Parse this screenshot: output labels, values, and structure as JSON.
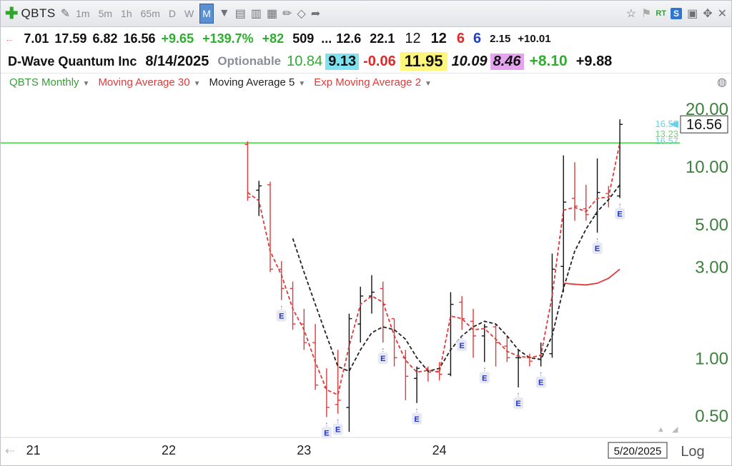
{
  "toolbar": {
    "symbol": "QBTS",
    "timeframes": [
      "1m",
      "5m",
      "1h",
      "65m",
      "D",
      "W",
      "M"
    ],
    "active_timeframe": "M",
    "rt_label": "RT",
    "s_label": "S"
  },
  "quote_row1": [
    "7.01",
    "17.59",
    "6.82",
    "16.56",
    "+9.65",
    "+139.7%",
    "+82",
    "509",
    "...",
    "12.6",
    "22.1",
    "12",
    "12",
    "6",
    "6",
    "2.15",
    "+10.01"
  ],
  "quote_row1_prefix": "...",
  "quote_row2": {
    "name": "D-Wave Quantum Inc",
    "date": "8/14/2025",
    "optionable": "Optionable",
    "v1": "10.84",
    "v2": "9.13",
    "v3": "-0.06",
    "v4": "11.95",
    "v5": "10.09",
    "v6": "8.46",
    "v7": "+8.10",
    "v8": "+9.88"
  },
  "indicators": {
    "symbol_period": "QBTS Monthly",
    "ma30": "Moving Average 30",
    "ma5": "Moving Average 5",
    "ema2": "Exp Moving Average 2"
  },
  "colors": {
    "green_line": "#5cd65c",
    "ma30": "#e03a3a",
    "ema2": "#e03a3a",
    "ma5": "#222222",
    "bar_up": "#111111",
    "bar_down": "#e03a3a",
    "earnings": "#2233cc"
  },
  "chart_data": {
    "type": "line",
    "scale": "log",
    "y_ticks": [
      "20.00",
      "10.00",
      "5.00",
      "3.00",
      "1.00",
      "0.50"
    ],
    "y_tick_values": [
      20,
      10,
      5,
      3,
      1,
      0.5
    ],
    "x_ticks": [
      "21",
      "22",
      "23",
      "24"
    ],
    "x_tick_values": [
      2021,
      2022,
      2023,
      2024
    ],
    "xlim": [
      2020.78,
      2025.75
    ],
    "ylim": [
      0.39,
      24
    ],
    "last_price_label": "16.56",
    "cursor_date_label": "5/20/2025",
    "scale_label": "Log",
    "right_tags": [
      {
        "text": "16.59",
        "y": 16.59,
        "color": "#6ad0e8"
      },
      {
        "text": "13.23",
        "y": 14.7,
        "color": "#6fd36f"
      },
      {
        "text": "16.57",
        "y": 13.5,
        "color": "#6ad0e8"
      }
    ],
    "horizontal_line": 13.23,
    "bars": [
      {
        "t": 2022.5833,
        "o": 13.0,
        "h": 13.5,
        "l": 6.6,
        "c": 6.9,
        "up": false
      },
      {
        "t": 2022.6667,
        "o": 7.5,
        "h": 8.4,
        "l": 5.5,
        "c": 7.9,
        "up": true
      },
      {
        "t": 2022.75,
        "o": 8.0,
        "h": 8.3,
        "l": 2.8,
        "c": 2.9,
        "up": false
      },
      {
        "t": 2022.8333,
        "o": 2.9,
        "h": 3.2,
        "l": 2.0,
        "c": 2.3,
        "up": false
      },
      {
        "t": 2022.9167,
        "o": 2.3,
        "h": 2.5,
        "l": 1.4,
        "c": 1.5,
        "up": false
      },
      {
        "t": 2023.0,
        "o": 1.5,
        "h": 1.8,
        "l": 1.1,
        "c": 1.2,
        "up": false
      },
      {
        "t": 2023.0833,
        "o": 1.2,
        "h": 1.5,
        "l": 0.68,
        "c": 0.72,
        "up": false
      },
      {
        "t": 2023.1667,
        "o": 0.7,
        "h": 0.88,
        "l": 0.49,
        "c": 0.55,
        "up": false
      },
      {
        "t": 2023.25,
        "o": 0.57,
        "h": 1.1,
        "l": 0.51,
        "c": 0.6,
        "up": false
      },
      {
        "t": 2023.3333,
        "o": 0.55,
        "h": 1.7,
        "l": 0.41,
        "c": 1.6,
        "up": true
      },
      {
        "t": 2023.4167,
        "o": 1.5,
        "h": 2.35,
        "l": 1.2,
        "c": 2.1,
        "up": true
      },
      {
        "t": 2023.5,
        "o": 2.1,
        "h": 2.7,
        "l": 1.7,
        "c": 2.2,
        "up": true
      },
      {
        "t": 2023.5833,
        "o": 2.3,
        "h": 2.5,
        "l": 1.2,
        "c": 1.9,
        "up": false
      },
      {
        "t": 2023.6667,
        "o": 1.6,
        "h": 1.6,
        "l": 0.9,
        "c": 1.0,
        "up": false
      },
      {
        "t": 2023.75,
        "o": 1.0,
        "h": 1.1,
        "l": 0.6,
        "c": 0.8,
        "up": false
      },
      {
        "t": 2023.8333,
        "o": 0.78,
        "h": 0.9,
        "l": 0.58,
        "c": 0.88,
        "up": true
      },
      {
        "t": 2023.9167,
        "o": 0.88,
        "h": 0.9,
        "l": 0.75,
        "c": 0.84,
        "up": false
      },
      {
        "t": 2024.0,
        "o": 0.85,
        "h": 0.95,
        "l": 0.76,
        "c": 0.82,
        "up": false
      },
      {
        "t": 2024.0833,
        "o": 0.82,
        "h": 2.2,
        "l": 0.8,
        "c": 1.9,
        "up": true
      },
      {
        "t": 2024.1667,
        "o": 1.95,
        "h": 2.1,
        "l": 1.4,
        "c": 1.6,
        "up": false
      },
      {
        "t": 2024.25,
        "o": 1.55,
        "h": 1.8,
        "l": 1.0,
        "c": 1.3,
        "up": false
      },
      {
        "t": 2024.3333,
        "o": 1.3,
        "h": 1.5,
        "l": 0.95,
        "c": 1.45,
        "up": true
      },
      {
        "t": 2024.4167,
        "o": 1.45,
        "h": 1.5,
        "l": 0.9,
        "c": 1.2,
        "up": false
      },
      {
        "t": 2024.5,
        "o": 1.15,
        "h": 1.3,
        "l": 0.95,
        "c": 1.0,
        "up": false
      },
      {
        "t": 2024.5833,
        "o": 1.0,
        "h": 1.1,
        "l": 0.7,
        "c": 1.0,
        "up": true
      },
      {
        "t": 2024.6667,
        "o": 1.0,
        "h": 1.05,
        "l": 0.9,
        "c": 0.96,
        "up": false
      },
      {
        "t": 2024.75,
        "o": 0.98,
        "h": 1.2,
        "l": 0.9,
        "c": 1.05,
        "up": true
      },
      {
        "t": 2024.8333,
        "o": 1.05,
        "h": 3.5,
        "l": 1.0,
        "c": 2.9,
        "up": true
      },
      {
        "t": 2024.9167,
        "o": 3.0,
        "h": 11.4,
        "l": 2.2,
        "c": 6.5,
        "up": true
      },
      {
        "t": 2025.0,
        "o": 6.8,
        "h": 10.5,
        "l": 5.2,
        "c": 6.2,
        "up": false
      },
      {
        "t": 2025.0833,
        "o": 6.0,
        "h": 8.0,
        "l": 5.2,
        "c": 5.6,
        "up": false
      },
      {
        "t": 2025.1667,
        "o": 5.6,
        "h": 11.0,
        "l": 4.5,
        "c": 7.3,
        "up": true
      },
      {
        "t": 2025.25,
        "o": 7.2,
        "h": 7.9,
        "l": 6.1,
        "c": 7.0,
        "up": false
      },
      {
        "t": 2025.3333,
        "o": 7.0,
        "h": 17.59,
        "l": 6.82,
        "c": 16.56,
        "up": true
      }
    ],
    "series": [
      {
        "key": "ma5",
        "name": "Moving Average 5",
        "style": "dashed",
        "x": [
          2022.9167,
          2023.0,
          2023.0833,
          2023.1667,
          2023.25,
          2023.3333,
          2023.4167,
          2023.5,
          2023.5833,
          2023.6667,
          2023.75,
          2023.8333,
          2023.9167,
          2024.0,
          2024.0833,
          2024.1667,
          2024.25,
          2024.3333,
          2024.4167,
          2024.5,
          2024.5833,
          2024.6667,
          2024.75,
          2024.8333,
          2024.9167,
          2025.0,
          2025.0833,
          2025.1667,
          2025.25,
          2025.3333
        ],
        "y": [
          4.2,
          2.8,
          1.9,
          1.3,
          0.9,
          0.85,
          1.1,
          1.35,
          1.45,
          1.4,
          1.25,
          1.0,
          0.85,
          0.88,
          1.1,
          1.3,
          1.45,
          1.55,
          1.5,
          1.3,
          1.1,
          1.0,
          0.98,
          1.3,
          2.3,
          3.6,
          4.7,
          5.8,
          6.7,
          8.0
        ]
      },
      {
        "key": "ema2",
        "name": "Exp Moving Average 2",
        "style": "dashed",
        "x": [
          2022.5833,
          2022.6667,
          2022.75,
          2022.8333,
          2022.9167,
          2023.0,
          2023.0833,
          2023.1667,
          2023.25,
          2023.3333,
          2023.4167,
          2023.5,
          2023.5833,
          2023.6667,
          2023.75,
          2023.8333,
          2023.9167,
          2024.0,
          2024.0833,
          2024.1667,
          2024.25,
          2024.3333,
          2024.4167,
          2024.5,
          2024.5833,
          2024.6667,
          2024.75,
          2024.8333,
          2024.9167,
          2025.0,
          2025.0833,
          2025.1667,
          2025.25,
          2025.3333
        ],
        "y": [
          7.3,
          6.6,
          3.6,
          2.7,
          1.8,
          1.4,
          0.95,
          0.68,
          0.64,
          1.15,
          1.9,
          2.1,
          1.95,
          1.3,
          0.97,
          0.84,
          0.86,
          0.84,
          1.65,
          1.6,
          1.4,
          1.42,
          1.25,
          1.08,
          1.02,
          1.0,
          1.03,
          2.1,
          5.9,
          6.1,
          5.8,
          6.8,
          6.9,
          13.3
        ]
      },
      {
        "key": "ma30",
        "name": "Moving Average 30",
        "style": "solid",
        "x": [
          2024.9167,
          2025.0,
          2025.0833,
          2025.1667,
          2025.25,
          2025.3333
        ],
        "y": [
          2.45,
          2.42,
          2.4,
          2.45,
          2.6,
          2.9
        ]
      }
    ],
    "earnings": [
      2022.8333,
      2023.1667,
      2023.25,
      2023.5833,
      2023.8333,
      2024.1667,
      2024.3333,
      2024.5833,
      2024.75,
      2025.1667,
      2025.3333
    ],
    "earnings_label": "E"
  }
}
